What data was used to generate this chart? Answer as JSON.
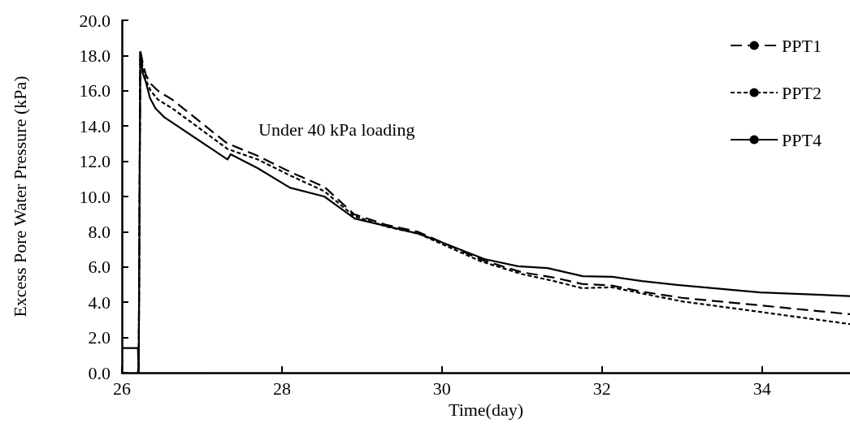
{
  "chart_data": {
    "type": "line",
    "xlabel": "Time(day)",
    "ylabel": "Excess Pore Water Pressure (kPa)",
    "annotations": [
      "Under 40 kPa loading"
    ],
    "xlim": [
      26,
      35.1
    ],
    "xticks": [
      26,
      28,
      30,
      32,
      34
    ],
    "ylim": [
      0,
      20
    ],
    "yticks": [
      {
        "value": 0,
        "label": "0.0"
      },
      {
        "value": 2,
        "label": "2.0"
      },
      {
        "value": 4,
        "label": "4.0"
      },
      {
        "value": 6,
        "label": "6.0"
      },
      {
        "value": 8,
        "label": "8.0"
      },
      {
        "value": 10,
        "label": "10.0"
      },
      {
        "value": 12,
        "label": "12.0"
      },
      {
        "value": 14,
        "label": "14.0"
      },
      {
        "value": 16,
        "label": "16.0"
      },
      {
        "value": 18,
        "label": "18.0"
      },
      {
        "value": 20,
        "label": "20.0"
      }
    ],
    "grid": false,
    "legend": "top right",
    "marker": "none",
    "series": [
      {
        "name": "PPT1",
        "color": "#000000",
        "line_style": "dashed",
        "x": [
          26.2,
          26.21,
          26.23,
          26.26,
          26.3,
          26.36,
          26.45,
          26.63,
          27.32,
          27.38,
          27.7,
          28.1,
          28.53,
          28.9,
          29.3,
          29.7,
          30.0,
          30.5,
          31.0,
          31.4,
          31.75,
          32.12,
          32.5,
          33.0,
          33.98,
          35.1
        ],
        "values": [
          0,
          0.3,
          18.3,
          17.6,
          16.9,
          16.4,
          16.0,
          15.5,
          13.0,
          12.9,
          12.3,
          11.4,
          10.55,
          9.0,
          8.4,
          8.0,
          7.4,
          6.4,
          5.7,
          5.4,
          5.04,
          4.95,
          4.6,
          4.25,
          3.82,
          3.32
        ]
      },
      {
        "name": "PPT2",
        "color": "#000000",
        "line_style": "dotted",
        "x": [
          26.2,
          26.21,
          26.23,
          26.26,
          26.3,
          26.36,
          26.45,
          26.63,
          27.32,
          27.38,
          27.7,
          28.1,
          28.53,
          28.9,
          29.3,
          29.7,
          30.0,
          30.5,
          31.0,
          31.4,
          31.75,
          32.12,
          32.5,
          33.0,
          33.98,
          35.1
        ],
        "values": [
          0,
          0.3,
          18.2,
          17.3,
          16.6,
          16.0,
          15.5,
          15.0,
          12.7,
          12.6,
          12.1,
          11.2,
          10.3,
          8.9,
          8.3,
          7.9,
          7.3,
          6.3,
          5.6,
          5.2,
          4.8,
          4.85,
          4.5,
          4.05,
          3.45,
          2.76
        ]
      },
      {
        "name": "PPT4",
        "color": "#000000",
        "line_style": "solid",
        "x": [
          26,
          26.2,
          26.21,
          26.23,
          26.26,
          26.3,
          26.35,
          26.42,
          26.53,
          27.32,
          27.36,
          27.7,
          28.1,
          28.53,
          28.91,
          29.7,
          30.0,
          30.53,
          30.95,
          31.32,
          31.76,
          32.13,
          32.5,
          32.94,
          33.98,
          35.1
        ],
        "values": [
          1.4,
          1.4,
          0,
          18.2,
          17.0,
          16.5,
          15.6,
          15.0,
          14.5,
          12.1,
          12.4,
          11.6,
          10.5,
          10.0,
          8.75,
          7.9,
          7.4,
          6.45,
          6.04,
          5.94,
          5.48,
          5.44,
          5.2,
          4.98,
          4.56,
          4.35
        ]
      }
    ]
  }
}
